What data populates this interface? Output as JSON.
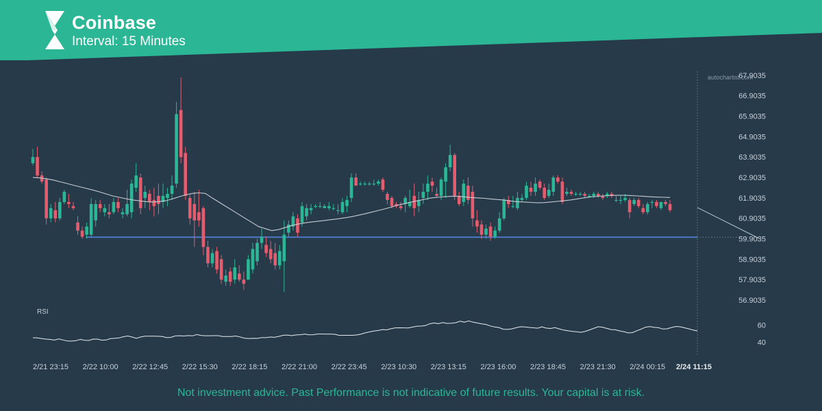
{
  "header": {
    "title": "Coinbase",
    "subtitle": "Interval: 15 Minutes"
  },
  "footer": {
    "disclaimer": "Not investment advice. Past Performance is not indicative of future results. Your capital is at risk."
  },
  "watermark": "autochartist.com",
  "colors": {
    "background": "#263a4a",
    "banner": "#2bb795",
    "bull": "#2bb795",
    "bear": "#e35d6e",
    "support_line": "#4d79c7",
    "moving_average": "#c7ccd2",
    "text": "#c8d0d8"
  },
  "chart_data": {
    "type": "candlestick",
    "y_ticks": [
      "67.9035",
      "66.9035",
      "65.9035",
      "64.9035",
      "63.9035",
      "62.9035",
      "61.9035",
      "60.9035",
      "59.9035",
      "58.9035",
      "57.9035",
      "56.9035"
    ],
    "ylim": [
      56.4,
      68.1
    ],
    "x_ticks": [
      "2/21 23:15",
      "2/22 10:00",
      "2/22 12:45",
      "2/22 15:30",
      "2/22 18:15",
      "2/22 21:00",
      "2/22 23:45",
      "2/23 10:30",
      "2/23 13:15",
      "2/23 16:00",
      "2/23 18:45",
      "2/23 21:30",
      "2/24 00:15",
      "2/24 11:15"
    ],
    "current_x_label": "2/24 11:15",
    "candles": [
      {
        "o": 63.6,
        "h": 64.3,
        "l": 63.5,
        "c": 63.9
      },
      {
        "o": 63.9,
        "h": 64.4,
        "l": 62.9,
        "c": 63.0
      },
      {
        "o": 63.0,
        "h": 63.2,
        "l": 62.6,
        "c": 62.7
      },
      {
        "o": 62.8,
        "h": 62.9,
        "l": 60.6,
        "c": 60.9
      },
      {
        "o": 60.9,
        "h": 61.6,
        "l": 60.7,
        "c": 61.4
      },
      {
        "o": 61.3,
        "h": 61.7,
        "l": 60.7,
        "c": 60.9
      },
      {
        "o": 60.9,
        "h": 61.9,
        "l": 60.8,
        "c": 61.7
      },
      {
        "o": 61.7,
        "h": 62.3,
        "l": 61.6,
        "c": 62.2
      },
      {
        "o": 61.7,
        "h": 62.1,
        "l": 61.4,
        "c": 61.6
      },
      {
        "o": 61.5,
        "h": 61.7,
        "l": 61.3,
        "c": 61.4
      },
      {
        "o": 60.7,
        "h": 61.0,
        "l": 60.1,
        "c": 60.3
      },
      {
        "o": 60.3,
        "h": 60.5,
        "l": 59.9,
        "c": 60.0
      },
      {
        "o": 60.1,
        "h": 60.7,
        "l": 59.9,
        "c": 60.5
      },
      {
        "o": 60.1,
        "h": 61.9,
        "l": 60.0,
        "c": 61.6
      },
      {
        "o": 60.8,
        "h": 61.8,
        "l": 60.5,
        "c": 61.6
      },
      {
        "o": 61.6,
        "h": 61.8,
        "l": 61.2,
        "c": 61.4
      },
      {
        "o": 61.2,
        "h": 61.6,
        "l": 61.0,
        "c": 61.4
      },
      {
        "o": 61.2,
        "h": 61.6,
        "l": 60.9,
        "c": 61.1
      },
      {
        "o": 61.2,
        "h": 61.9,
        "l": 61.1,
        "c": 61.7
      },
      {
        "o": 61.7,
        "h": 61.9,
        "l": 61.2,
        "c": 61.4
      },
      {
        "o": 61.1,
        "h": 61.4,
        "l": 60.9,
        "c": 61.2
      },
      {
        "o": 61.1,
        "h": 62.3,
        "l": 61.0,
        "c": 61.6
      },
      {
        "o": 61.2,
        "h": 62.8,
        "l": 60.9,
        "c": 62.6
      },
      {
        "o": 62.4,
        "h": 63.6,
        "l": 62.2,
        "c": 63.0
      },
      {
        "o": 62.9,
        "h": 63.1,
        "l": 61.1,
        "c": 61.4
      },
      {
        "o": 61.9,
        "h": 62.5,
        "l": 61.4,
        "c": 62.2
      },
      {
        "o": 62.1,
        "h": 62.3,
        "l": 61.3,
        "c": 61.7
      },
      {
        "o": 61.8,
        "h": 62.4,
        "l": 61.0,
        "c": 61.5
      },
      {
        "o": 62.0,
        "h": 62.6,
        "l": 61.1,
        "c": 61.6
      },
      {
        "o": 61.7,
        "h": 62.6,
        "l": 61.4,
        "c": 62.0
      },
      {
        "o": 61.9,
        "h": 62.4,
        "l": 61.5,
        "c": 62.1
      },
      {
        "o": 62.1,
        "h": 63.0,
        "l": 61.8,
        "c": 62.5
      },
      {
        "o": 62.6,
        "h": 66.6,
        "l": 62.4,
        "c": 66.0
      },
      {
        "o": 66.2,
        "h": 67.8,
        "l": 63.6,
        "c": 63.9
      },
      {
        "o": 64.1,
        "h": 64.4,
        "l": 61.8,
        "c": 62.0
      },
      {
        "o": 61.9,
        "h": 62.1,
        "l": 60.6,
        "c": 60.9
      },
      {
        "o": 61.6,
        "h": 62.2,
        "l": 59.5,
        "c": 60.8
      },
      {
        "o": 61.2,
        "h": 62.3,
        "l": 60.5,
        "c": 60.8
      },
      {
        "o": 61.4,
        "h": 61.5,
        "l": 59.1,
        "c": 59.5
      },
      {
        "o": 59.5,
        "h": 59.8,
        "l": 58.5,
        "c": 58.7
      },
      {
        "o": 58.7,
        "h": 59.4,
        "l": 58.5,
        "c": 59.2
      },
      {
        "o": 59.3,
        "h": 59.5,
        "l": 58.2,
        "c": 58.4
      },
      {
        "o": 58.9,
        "h": 59.1,
        "l": 57.7,
        "c": 57.9
      },
      {
        "o": 57.8,
        "h": 58.4,
        "l": 57.6,
        "c": 58.1
      },
      {
        "o": 58.3,
        "h": 58.5,
        "l": 57.6,
        "c": 57.8
      },
      {
        "o": 57.9,
        "h": 58.9,
        "l": 57.7,
        "c": 58.5
      },
      {
        "o": 58.2,
        "h": 58.6,
        "l": 57.8,
        "c": 57.9
      },
      {
        "o": 57.9,
        "h": 58.3,
        "l": 57.4,
        "c": 57.7
      },
      {
        "o": 57.9,
        "h": 59.1,
        "l": 57.9,
        "c": 58.9
      },
      {
        "o": 58.4,
        "h": 59.7,
        "l": 58.2,
        "c": 59.4
      },
      {
        "o": 58.8,
        "h": 59.9,
        "l": 58.6,
        "c": 59.7
      },
      {
        "o": 59.7,
        "h": 60.4,
        "l": 59.4,
        "c": 60.0
      },
      {
        "o": 59.6,
        "h": 60.0,
        "l": 59.0,
        "c": 59.2
      },
      {
        "o": 59.4,
        "h": 59.8,
        "l": 58.7,
        "c": 58.9
      },
      {
        "o": 59.2,
        "h": 59.7,
        "l": 58.4,
        "c": 58.6
      },
      {
        "o": 58.6,
        "h": 59.6,
        "l": 58.4,
        "c": 59.3
      },
      {
        "o": 58.8,
        "h": 60.8,
        "l": 57.3,
        "c": 60.1
      },
      {
        "o": 60.2,
        "h": 60.8,
        "l": 60.0,
        "c": 60.6
      },
      {
        "o": 60.5,
        "h": 61.2,
        "l": 60.3,
        "c": 61.0
      },
      {
        "o": 60.9,
        "h": 61.1,
        "l": 60.0,
        "c": 60.2
      },
      {
        "o": 60.7,
        "h": 61.7,
        "l": 60.5,
        "c": 61.5
      },
      {
        "o": 61.0,
        "h": 61.6,
        "l": 60.8,
        "c": 61.4
      },
      {
        "o": 61.3,
        "h": 61.6,
        "l": 61.1,
        "c": 61.4
      },
      {
        "o": 61.5,
        "h": 61.6,
        "l": 61.4,
        "c": 61.5
      },
      {
        "o": 61.5,
        "h": 61.7,
        "l": 61.4,
        "c": 61.5
      },
      {
        "o": 61.4,
        "h": 61.6,
        "l": 61.4,
        "c": 61.5
      },
      {
        "o": 61.4,
        "h": 61.7,
        "l": 61.3,
        "c": 61.5
      },
      {
        "o": 61.4,
        "h": 61.6,
        "l": 61.3,
        "c": 61.4
      },
      {
        "o": 61.3,
        "h": 61.6,
        "l": 61.1,
        "c": 61.3
      },
      {
        "o": 61.2,
        "h": 61.9,
        "l": 61.1,
        "c": 61.7
      },
      {
        "o": 61.5,
        "h": 62.0,
        "l": 61.2,
        "c": 61.8
      },
      {
        "o": 61.9,
        "h": 63.1,
        "l": 61.7,
        "c": 62.9
      },
      {
        "o": 62.9,
        "h": 63.1,
        "l": 62.5,
        "c": 62.5
      },
      {
        "o": 62.6,
        "h": 62.7,
        "l": 62.5,
        "c": 62.6
      },
      {
        "o": 62.6,
        "h": 62.7,
        "l": 62.5,
        "c": 62.6
      },
      {
        "o": 62.6,
        "h": 62.7,
        "l": 62.5,
        "c": 62.6
      },
      {
        "o": 62.6,
        "h": 62.8,
        "l": 62.5,
        "c": 62.6
      },
      {
        "o": 62.6,
        "h": 62.8,
        "l": 62.5,
        "c": 62.7
      },
      {
        "o": 62.8,
        "h": 62.9,
        "l": 62.2,
        "c": 62.3
      },
      {
        "o": 62.1,
        "h": 62.2,
        "l": 61.6,
        "c": 61.8
      },
      {
        "o": 61.9,
        "h": 62.0,
        "l": 61.4,
        "c": 61.5
      },
      {
        "o": 61.6,
        "h": 61.7,
        "l": 61.4,
        "c": 61.5
      },
      {
        "o": 61.5,
        "h": 61.7,
        "l": 61.3,
        "c": 61.4
      },
      {
        "o": 61.6,
        "h": 62.0,
        "l": 61.2,
        "c": 61.9
      },
      {
        "o": 61.5,
        "h": 62.3,
        "l": 61.4,
        "c": 61.7
      },
      {
        "o": 62.0,
        "h": 62.6,
        "l": 61.0,
        "c": 61.4
      },
      {
        "o": 61.5,
        "h": 62.2,
        "l": 61.2,
        "c": 61.8
      },
      {
        "o": 61.9,
        "h": 62.6,
        "l": 61.6,
        "c": 62.2
      },
      {
        "o": 62.2,
        "h": 63.0,
        "l": 61.8,
        "c": 62.6
      },
      {
        "o": 62.7,
        "h": 62.9,
        "l": 62.2,
        "c": 62.5
      },
      {
        "o": 62.1,
        "h": 62.4,
        "l": 61.9,
        "c": 62.0
      },
      {
        "o": 62.0,
        "h": 62.9,
        "l": 61.8,
        "c": 62.8
      },
      {
        "o": 62.7,
        "h": 63.6,
        "l": 61.9,
        "c": 63.4
      },
      {
        "o": 63.4,
        "h": 64.5,
        "l": 63.2,
        "c": 64.0
      },
      {
        "o": 64.0,
        "h": 64.1,
        "l": 61.8,
        "c": 62.0
      },
      {
        "o": 62.0,
        "h": 62.2,
        "l": 61.5,
        "c": 61.6
      },
      {
        "o": 61.7,
        "h": 62.8,
        "l": 61.5,
        "c": 62.6
      },
      {
        "o": 62.5,
        "h": 62.9,
        "l": 61.6,
        "c": 61.8
      },
      {
        "o": 62.2,
        "h": 62.5,
        "l": 60.5,
        "c": 60.9
      },
      {
        "o": 60.8,
        "h": 61.3,
        "l": 60.2,
        "c": 60.5
      },
      {
        "o": 60.6,
        "h": 60.8,
        "l": 59.9,
        "c": 60.1
      },
      {
        "o": 60.1,
        "h": 60.6,
        "l": 59.9,
        "c": 60.4
      },
      {
        "o": 60.5,
        "h": 60.7,
        "l": 59.8,
        "c": 60.0
      },
      {
        "o": 60.0,
        "h": 60.5,
        "l": 59.9,
        "c": 60.3
      },
      {
        "o": 60.3,
        "h": 61.2,
        "l": 60.2,
        "c": 60.9
      },
      {
        "o": 60.9,
        "h": 61.9,
        "l": 60.8,
        "c": 61.8
      },
      {
        "o": 61.8,
        "h": 62.0,
        "l": 61.4,
        "c": 61.6
      },
      {
        "o": 61.5,
        "h": 62.0,
        "l": 61.4,
        "c": 61.5
      },
      {
        "o": 61.4,
        "h": 62.2,
        "l": 61.3,
        "c": 61.9
      },
      {
        "o": 61.8,
        "h": 62.1,
        "l": 61.7,
        "c": 61.9
      },
      {
        "o": 61.9,
        "h": 62.7,
        "l": 61.8,
        "c": 62.5
      },
      {
        "o": 62.4,
        "h": 62.7,
        "l": 62.0,
        "c": 62.2
      },
      {
        "o": 62.2,
        "h": 62.9,
        "l": 62.0,
        "c": 62.6
      },
      {
        "o": 62.7,
        "h": 62.8,
        "l": 62.3,
        "c": 62.4
      },
      {
        "o": 62.4,
        "h": 62.6,
        "l": 61.8,
        "c": 61.9
      },
      {
        "o": 62.0,
        "h": 62.6,
        "l": 61.9,
        "c": 62.3
      },
      {
        "o": 62.2,
        "h": 63.0,
        "l": 62.0,
        "c": 62.9
      },
      {
        "o": 62.9,
        "h": 63.0,
        "l": 62.6,
        "c": 62.7
      },
      {
        "o": 62.7,
        "h": 62.9,
        "l": 61.6,
        "c": 61.7
      },
      {
        "o": 62.1,
        "h": 62.4,
        "l": 62.0,
        "c": 62.2
      },
      {
        "o": 62.2,
        "h": 62.3,
        "l": 62.0,
        "c": 62.1
      },
      {
        "o": 62.1,
        "h": 62.2,
        "l": 62.0,
        "c": 62.1
      },
      {
        "o": 62.1,
        "h": 62.2,
        "l": 62.0,
        "c": 62.1
      },
      {
        "o": 62.1,
        "h": 62.2,
        "l": 61.9,
        "c": 62.0
      },
      {
        "o": 62.0,
        "h": 62.1,
        "l": 61.9,
        "c": 62.0
      },
      {
        "o": 62.0,
        "h": 62.2,
        "l": 61.9,
        "c": 62.1
      },
      {
        "o": 62.1,
        "h": 62.2,
        "l": 61.9,
        "c": 62.0
      },
      {
        "o": 62.0,
        "h": 62.1,
        "l": 61.8,
        "c": 61.9
      },
      {
        "o": 62.0,
        "h": 62.2,
        "l": 61.9,
        "c": 62.1
      },
      {
        "o": 62.1,
        "h": 62.2,
        "l": 61.9,
        "c": 62.0
      },
      {
        "o": 61.8,
        "h": 62.0,
        "l": 61.7,
        "c": 61.8
      },
      {
        "o": 61.8,
        "h": 62.0,
        "l": 61.6,
        "c": 61.8
      },
      {
        "o": 61.8,
        "h": 62.1,
        "l": 61.7,
        "c": 61.9
      },
      {
        "o": 61.8,
        "h": 61.9,
        "l": 60.9,
        "c": 61.2
      },
      {
        "o": 61.6,
        "h": 61.9,
        "l": 61.5,
        "c": 61.8
      },
      {
        "o": 61.8,
        "h": 61.9,
        "l": 61.4,
        "c": 61.5
      },
      {
        "o": 61.4,
        "h": 61.6,
        "l": 61.1,
        "c": 61.2
      },
      {
        "o": 61.2,
        "h": 61.7,
        "l": 61.1,
        "c": 61.6
      },
      {
        "o": 61.7,
        "h": 61.8,
        "l": 61.4,
        "c": 61.7
      },
      {
        "o": 61.7,
        "h": 61.8,
        "l": 61.4,
        "c": 61.5
      },
      {
        "o": 61.4,
        "h": 61.7,
        "l": 61.3,
        "c": 61.7
      },
      {
        "o": 61.7,
        "h": 61.8,
        "l": 61.5,
        "c": 61.6
      },
      {
        "o": 61.6,
        "h": 61.8,
        "l": 61.2,
        "c": 61.3
      }
    ],
    "moving_average": [
      62.9,
      62.88,
      62.84,
      62.78,
      62.7,
      62.62,
      62.53,
      62.45,
      62.37,
      62.29,
      62.2,
      62.1,
      62.0,
      61.93,
      61.86,
      61.8,
      61.76,
      61.72,
      61.7,
      61.72,
      61.76,
      61.85,
      61.95,
      62.05,
      62.12,
      62.15,
      62.12,
      61.9,
      61.7,
      61.5,
      61.3,
      61.1,
      60.9,
      60.7,
      60.5,
      60.4,
      60.3,
      60.35,
      60.45,
      60.55,
      60.62,
      60.68,
      60.72,
      60.76,
      60.8,
      60.84,
      60.88,
      60.93,
      60.98,
      61.05,
      61.12,
      61.2,
      61.28,
      61.36,
      61.45,
      61.55,
      61.62,
      61.7,
      61.76,
      61.83,
      61.9,
      61.93,
      61.96,
      61.98,
      61.98,
      61.95,
      61.92,
      61.9,
      61.88,
      61.85,
      61.82,
      61.8,
      61.75,
      61.71,
      61.7,
      61.68,
      61.66,
      61.67,
      61.7,
      61.73,
      61.76,
      61.8,
      61.85,
      61.9,
      61.95,
      61.98,
      62.0,
      62.02,
      62.03,
      62.03,
      62.02,
      62.0,
      61.98,
      61.96,
      61.94,
      61.93,
      61.92
    ],
    "support_level": 59.98,
    "support_x_range": [
      59.5,
      1018
    ],
    "projection": {
      "from_x": 1018,
      "from_y": 61.43,
      "to_x": 1108,
      "to_y": 59.92
    },
    "current_x": 1018,
    "rsi": {
      "label": "RSI",
      "ticks": [
        60,
        40
      ],
      "ylim": [
        30,
        70
      ],
      "values": [
        45.2,
        45.0,
        44.2,
        43.6,
        43.2,
        42.4,
        43.8,
        42.6,
        41.4,
        41.2,
        41.8,
        43.2,
        42.2,
        42.0,
        43.6,
        43.5,
        42.3,
        42.6,
        44.2,
        44.5,
        45.0,
        46.4,
        47.2,
        46.0,
        44.6,
        46.1,
        47.0,
        47.0,
        47.0,
        46.9,
        46.6,
        45.3,
        45.6,
        47.3,
        47.5,
        47.2,
        47.7,
        47.4,
        48.9,
        47.8,
        47.5,
        47.5,
        47.6,
        47.6,
        46.6,
        46.6,
        46.6,
        47.2,
        46.2,
        44.7,
        44.2,
        44.5,
        44.4,
        45.3,
        45.3,
        46.0,
        45.7,
        46.7,
        48.0,
        48.3,
        47.6,
        48.5,
        48.7,
        49.4,
        48.6,
        48.7,
        49.5,
        49.5,
        49.4,
        49.4,
        49.2,
        47.9,
        48.0,
        48.0,
        48.0,
        48.4,
        49.3,
        50.8,
        52.0,
        53.0,
        53.6,
        54.7,
        54.4,
        55.7,
        56.7,
        56.8,
        56.7,
        56.6,
        57.6,
        58.6,
        58.8,
        59.4,
        61.5,
        62.4,
        61.6,
        62.9,
        61.9,
        62.1,
        62.7,
        64.5,
        63.4,
        64.8,
        63.4,
        62.4,
        61.4,
        60.7,
        59.0,
        57.8,
        57.1,
        55.1,
        54.9,
        55.5,
        56.9,
        58.0,
        57.8,
        57.2,
        56.8,
        56.3,
        57.9,
        56.4,
        56.0,
        57.0,
        55.5,
        54.2,
        53.3,
        52.6,
        52.1,
        51.5,
        52.5,
        54.3,
        56.1,
        58.0,
        57.5,
        56.1,
        54.7,
        54.5,
        53.1,
        52.2,
        50.8,
        51.2,
        53.4,
        55.3,
        57.5,
        58.2,
        57.3,
        56.9,
        55.4,
        55.6,
        57.1,
        58.3,
        58.0,
        56.8,
        55.6,
        54.2,
        53.2
      ]
    }
  }
}
